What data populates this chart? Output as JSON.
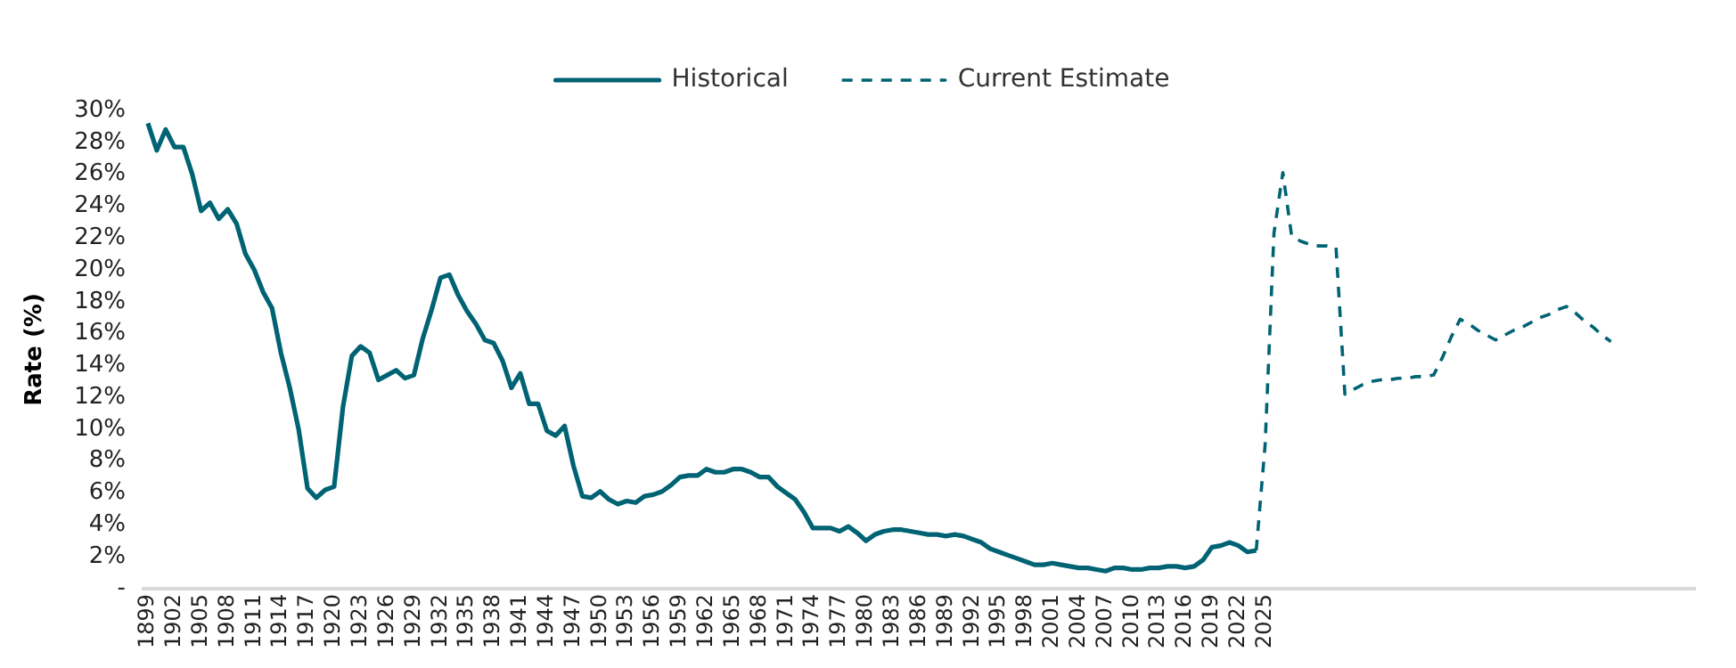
{
  "chart_data": {
    "type": "line",
    "ylabel": "Rate (%)",
    "categories": [
      "1899",
      null,
      null,
      "1902",
      null,
      null,
      "1905",
      null,
      null,
      "1908",
      null,
      null,
      "1911",
      null,
      null,
      "1914",
      null,
      null,
      "1917",
      null,
      null,
      "1920",
      null,
      null,
      "1923",
      null,
      null,
      "1926",
      null,
      null,
      "1929",
      null,
      null,
      "1932",
      null,
      null,
      "1935",
      null,
      null,
      "1938",
      null,
      null,
      "1941",
      null,
      null,
      "1944",
      null,
      null,
      "1947",
      null,
      null,
      "1950",
      null,
      null,
      "1953",
      null,
      null,
      "1956",
      null,
      null,
      "1959",
      null,
      null,
      "1962",
      null,
      null,
      "1965",
      null,
      null,
      "1968",
      null,
      null,
      "1971",
      null,
      null,
      "1974",
      null,
      null,
      "1977",
      null,
      null,
      "1980",
      null,
      null,
      "1983",
      null,
      null,
      "1986",
      null,
      null,
      "1989",
      null,
      null,
      "1992",
      null,
      null,
      "1995",
      null,
      null,
      "1998",
      null,
      null,
      "2001",
      null,
      null,
      "2004",
      null,
      null,
      "2007",
      null,
      null,
      "2010",
      null,
      null,
      "2013",
      null,
      null,
      "2016",
      null,
      null,
      "2019",
      null,
      null,
      "2022",
      null,
      null,
      "2025",
      null,
      null,
      null,
      null,
      null,
      null,
      null,
      null,
      null,
      null,
      null,
      null,
      null,
      null,
      null,
      null,
      null,
      null,
      null,
      null,
      null,
      null,
      null,
      null,
      null,
      null,
      null,
      null,
      null,
      null,
      null,
      null,
      null,
      null,
      null,
      null,
      null,
      null,
      null,
      null,
      null,
      null,
      null,
      null,
      null,
      null,
      null,
      null
    ],
    "series": [
      {
        "name": "Historical",
        "color": "#006373",
        "line_style": "solid",
        "values": [
          29.2,
          27.5,
          28.8,
          27.7,
          27.7,
          26.0,
          23.7,
          24.2,
          23.2,
          23.8,
          22.9,
          21.0,
          20.0,
          18.6,
          17.6,
          14.8,
          12.6,
          10.0,
          6.3,
          5.7,
          6.2,
          6.4,
          11.4,
          14.6,
          15.2,
          14.8,
          13.1,
          13.4,
          13.7,
          13.2,
          13.4,
          15.7,
          17.5,
          19.5,
          19.7,
          18.4,
          17.4,
          16.6,
          15.6,
          15.4,
          14.3,
          12.6,
          13.5,
          11.6,
          11.6,
          9.9,
          9.6,
          10.2,
          7.7,
          5.8,
          5.7,
          6.1,
          5.6,
          5.3,
          5.5,
          5.4,
          5.8,
          5.9,
          6.1,
          6.5,
          7.0,
          7.1,
          7.1,
          7.5,
          7.3,
          7.3,
          7.5,
          7.5,
          7.3,
          7.0,
          7.0,
          6.4,
          6.0,
          5.6,
          4.8,
          3.8,
          3.8,
          3.8,
          3.6,
          3.9,
          3.5,
          3.0,
          3.4,
          3.6,
          3.7,
          3.7,
          3.6,
          3.5,
          3.4,
          3.4,
          3.3,
          3.4,
          3.3,
          3.1,
          2.9,
          2.5,
          2.3,
          2.1,
          1.9,
          1.7,
          1.5,
          1.5,
          1.6,
          1.5,
          1.4,
          1.3,
          1.3,
          1.2,
          1.1,
          1.3,
          1.3,
          1.2,
          1.2,
          1.3,
          1.3,
          1.4,
          1.4,
          1.3,
          1.4,
          1.8,
          2.6,
          2.7,
          2.9,
          2.7,
          2.3,
          2.4,
          null,
          null,
          null,
          null,
          null,
          null,
          null,
          null,
          null,
          null,
          null,
          null,
          null,
          null,
          null,
          null,
          null,
          null,
          null,
          null,
          null,
          null,
          null,
          null,
          null,
          null,
          null,
          null,
          null,
          null,
          null,
          null,
          null,
          null,
          null,
          null,
          null,
          null,
          null,
          null,
          null,
          null,
          null,
          null,
          null,
          null,
          null,
          null,
          null
        ]
      },
      {
        "name": "Current Estimate",
        "color": "#006373",
        "line_style": "dashed",
        "values": [
          null,
          null,
          null,
          null,
          null,
          null,
          null,
          null,
          null,
          null,
          null,
          null,
          null,
          null,
          null,
          null,
          null,
          null,
          null,
          null,
          null,
          null,
          null,
          null,
          null,
          null,
          null,
          null,
          null,
          null,
          null,
          null,
          null,
          null,
          null,
          null,
          null,
          null,
          null,
          null,
          null,
          null,
          null,
          null,
          null,
          null,
          null,
          null,
          null,
          null,
          null,
          null,
          null,
          null,
          null,
          null,
          null,
          null,
          null,
          null,
          null,
          null,
          null,
          null,
          null,
          null,
          null,
          null,
          null,
          null,
          null,
          null,
          null,
          null,
          null,
          null,
          null,
          null,
          null,
          null,
          null,
          null,
          null,
          null,
          null,
          null,
          null,
          null,
          null,
          null,
          null,
          null,
          null,
          null,
          null,
          null,
          null,
          null,
          null,
          null,
          null,
          null,
          null,
          null,
          null,
          null,
          null,
          null,
          null,
          null,
          null,
          null,
          null,
          null,
          null,
          null,
          null,
          null,
          null,
          null,
          null,
          null,
          null,
          null,
          null,
          2.4,
          9.0,
          22.3,
          26.1,
          22.1,
          21.8,
          21.6,
          21.5,
          21.5,
          21.4,
          12.2,
          12.5,
          12.8,
          13.0,
          13.1,
          13.1,
          13.2,
          13.2,
          13.3,
          13.3,
          13.4,
          14.5,
          15.8,
          16.9,
          16.6,
          16.2,
          15.9,
          15.6,
          15.9,
          16.2,
          16.4,
          16.7,
          17.0,
          17.2,
          17.5,
          17.7,
          17.3,
          16.8,
          16.4,
          15.9,
          15.5,
          null,
          null,
          null,
          null,
          null,
          null,
          null,
          null,
          null
        ]
      }
    ],
    "ylim": [
      0,
      30
    ],
    "yticks": [
      {
        "value": 0,
        "label": "-"
      },
      {
        "value": 2,
        "label": "2%"
      },
      {
        "value": 4,
        "label": "4%"
      },
      {
        "value": 6,
        "label": "6%"
      },
      {
        "value": 8,
        "label": "8%"
      },
      {
        "value": 10,
        "label": "10%"
      },
      {
        "value": 12,
        "label": "12%"
      },
      {
        "value": 14,
        "label": "14%"
      },
      {
        "value": 16,
        "label": "16%"
      },
      {
        "value": 18,
        "label": "18%"
      },
      {
        "value": 20,
        "label": "20%"
      },
      {
        "value": 22,
        "label": "22%"
      },
      {
        "value": 24,
        "label": "24%"
      },
      {
        "value": 26,
        "label": "26%"
      },
      {
        "value": 28,
        "label": "28%"
      },
      {
        "value": 30,
        "label": "30%"
      }
    ],
    "grid": false,
    "legend": "top",
    "marker": "none"
  }
}
